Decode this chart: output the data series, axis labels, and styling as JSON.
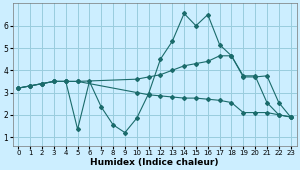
{
  "xlabel": "Humidex (Indice chaleur)",
  "bg_color": "#cceeff",
  "grid_color": "#99ccdd",
  "line_color": "#1a6b6b",
  "xlim": [
    -0.5,
    23.5
  ],
  "ylim": [
    0.6,
    7.0
  ],
  "yticks": [
    1,
    2,
    3,
    4,
    5,
    6
  ],
  "xticks": [
    0,
    1,
    2,
    3,
    4,
    5,
    6,
    7,
    8,
    9,
    10,
    11,
    12,
    13,
    14,
    15,
    16,
    17,
    18,
    19,
    20,
    21,
    22,
    23
  ],
  "lines": [
    {
      "x": [
        0,
        1,
        2,
        3,
        4,
        5,
        6,
        7,
        8,
        9,
        10,
        11,
        12,
        13,
        14,
        15,
        16,
        17,
        18,
        19,
        20,
        21,
        22,
        23
      ],
      "y": [
        3.2,
        3.3,
        3.4,
        3.5,
        3.5,
        1.35,
        3.5,
        2.35,
        1.55,
        1.2,
        1.85,
        2.95,
        4.5,
        5.3,
        6.55,
        6.0,
        6.5,
        5.15,
        4.65,
        3.75,
        3.75,
        2.55,
        2.0,
        1.9
      ]
    },
    {
      "x": [
        0,
        1,
        2,
        3,
        4,
        5,
        10,
        11,
        12,
        13,
        14,
        15,
        16,
        17,
        18,
        19,
        20,
        21,
        22,
        23
      ],
      "y": [
        3.2,
        3.3,
        3.4,
        3.5,
        3.5,
        3.5,
        3.6,
        3.7,
        3.8,
        4.0,
        4.2,
        4.3,
        4.4,
        4.65,
        4.65,
        3.7,
        3.7,
        3.75,
        2.55,
        1.9
      ]
    },
    {
      "x": [
        0,
        1,
        2,
        3,
        4,
        5,
        10,
        11,
        12,
        13,
        14,
        15,
        16,
        17,
        18,
        19,
        20,
        21,
        22,
        23
      ],
      "y": [
        3.2,
        3.3,
        3.4,
        3.5,
        3.5,
        3.5,
        3.0,
        2.9,
        2.85,
        2.8,
        2.75,
        2.75,
        2.7,
        2.65,
        2.55,
        2.1,
        2.1,
        2.1,
        2.0,
        1.9
      ]
    }
  ]
}
